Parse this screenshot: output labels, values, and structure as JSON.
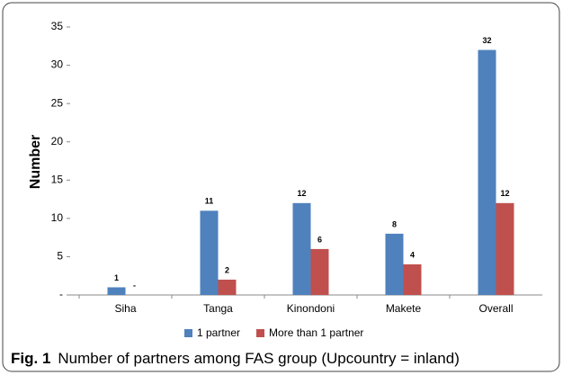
{
  "chart_data": {
    "type": "bar",
    "categories": [
      "Siha",
      "Tanga",
      "Kinondoni",
      "Makete",
      "Overall"
    ],
    "series": [
      {
        "name": "1 partner",
        "color": "#4f81bd",
        "values": [
          1,
          11,
          12,
          8,
          32
        ]
      },
      {
        "name": "More than 1 partner",
        "color": "#c0504d",
        "values": [
          0,
          2,
          6,
          4,
          12
        ],
        "value_labels": [
          "-",
          "2",
          "6",
          "4",
          "12"
        ]
      }
    ],
    "ylabel": "Number",
    "ylim": [
      0,
      35
    ],
    "yticks": [
      {
        "value": 0,
        "label": "-"
      },
      5,
      10,
      15,
      20,
      25,
      30,
      35
    ],
    "grid": false,
    "legend": "bottom",
    "caption_label": "Fig. 1",
    "caption": "Number of partners among FAS group (Upcountry = inland)"
  }
}
